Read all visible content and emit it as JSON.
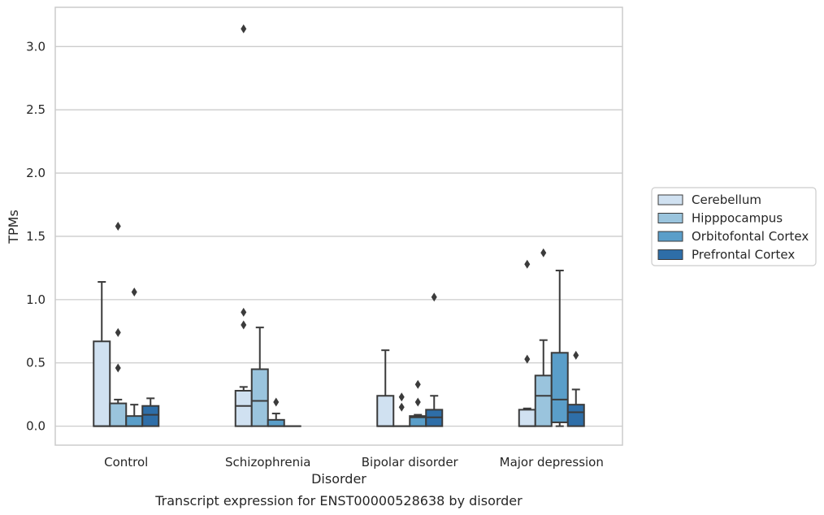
{
  "chart_data": {
    "type": "box",
    "title": "",
    "caption": "Transcript expression for ENST00000528638 by disorder",
    "xlabel": "Disorder",
    "ylabel": "TPMs",
    "ylim": [
      -0.15,
      3.31
    ],
    "yticks": [
      "0.0",
      "0.5",
      "1.0",
      "1.5",
      "2.0",
      "2.5",
      "3.0"
    ],
    "grid": "horizontal",
    "legend_position": "right",
    "categories": [
      "Control",
      "Schizophrenia",
      "Bipolar disorder",
      "Major depression"
    ],
    "series": [
      {
        "name": "Cerebellum",
        "color": "#d0e1f1",
        "boxes": [
          {
            "whisker_low": 0.0,
            "q1": 0.0,
            "median": 0.0,
            "q3": 0.67,
            "whisker_high": 1.14,
            "outliers": []
          },
          {
            "whisker_low": 0.0,
            "q1": 0.0,
            "median": 0.16,
            "q3": 0.28,
            "whisker_high": 0.31,
            "outliers": [
              0.8,
              0.9,
              3.14
            ]
          },
          {
            "whisker_low": 0.0,
            "q1": 0.0,
            "median": 0.0,
            "q3": 0.24,
            "whisker_high": 0.6,
            "outliers": []
          },
          {
            "whisker_low": 0.0,
            "q1": 0.0,
            "median": 0.0,
            "q3": 0.13,
            "whisker_high": 0.14,
            "outliers": [
              0.53,
              1.28
            ]
          }
        ]
      },
      {
        "name": "Hipppocampus",
        "color": "#9ac4dd",
        "boxes": [
          {
            "whisker_low": 0.0,
            "q1": 0.0,
            "median": 0.0,
            "q3": 0.18,
            "whisker_high": 0.21,
            "outliers": [
              0.46,
              0.74,
              1.58
            ]
          },
          {
            "whisker_low": 0.0,
            "q1": 0.0,
            "median": 0.2,
            "q3": 0.45,
            "whisker_high": 0.78,
            "outliers": []
          },
          {
            "whisker_low": 0.0,
            "q1": 0.0,
            "median": 0.0,
            "q3": 0.0,
            "whisker_high": 0.0,
            "outliers": [
              0.15,
              0.23
            ]
          },
          {
            "whisker_low": 0.0,
            "q1": 0.0,
            "median": 0.24,
            "q3": 0.4,
            "whisker_high": 0.68,
            "outliers": [
              1.37
            ]
          }
        ]
      },
      {
        "name": "Orbitofontal Cortex",
        "color": "#5a9ec9",
        "boxes": [
          {
            "whisker_low": 0.0,
            "q1": 0.0,
            "median": 0.0,
            "q3": 0.08,
            "whisker_high": 0.17,
            "outliers": [
              1.06
            ]
          },
          {
            "whisker_low": 0.0,
            "q1": 0.0,
            "median": 0.0,
            "q3": 0.05,
            "whisker_high": 0.1,
            "outliers": [
              0.19
            ]
          },
          {
            "whisker_low": 0.0,
            "q1": 0.0,
            "median": 0.07,
            "q3": 0.08,
            "whisker_high": 0.09,
            "outliers": [
              0.19,
              0.33
            ]
          },
          {
            "whisker_low": 0.0,
            "q1": 0.03,
            "median": 0.21,
            "q3": 0.58,
            "whisker_high": 1.23,
            "outliers": []
          }
        ]
      },
      {
        "name": "Prefrontal Cortex",
        "color": "#2e6ea8",
        "boxes": [
          {
            "whisker_low": 0.0,
            "q1": 0.0,
            "median": 0.09,
            "q3": 0.16,
            "whisker_high": 0.22,
            "outliers": []
          },
          {
            "whisker_low": 0.0,
            "q1": 0.0,
            "median": 0.0,
            "q3": 0.0,
            "whisker_high": 0.0,
            "outliers": []
          },
          {
            "whisker_low": 0.0,
            "q1": 0.0,
            "median": 0.07,
            "q3": 0.13,
            "whisker_high": 0.24,
            "outliers": [
              1.02
            ]
          },
          {
            "whisker_low": 0.0,
            "q1": 0.0,
            "median": 0.11,
            "q3": 0.17,
            "whisker_high": 0.29,
            "outliers": [
              0.56
            ]
          }
        ]
      }
    ]
  }
}
